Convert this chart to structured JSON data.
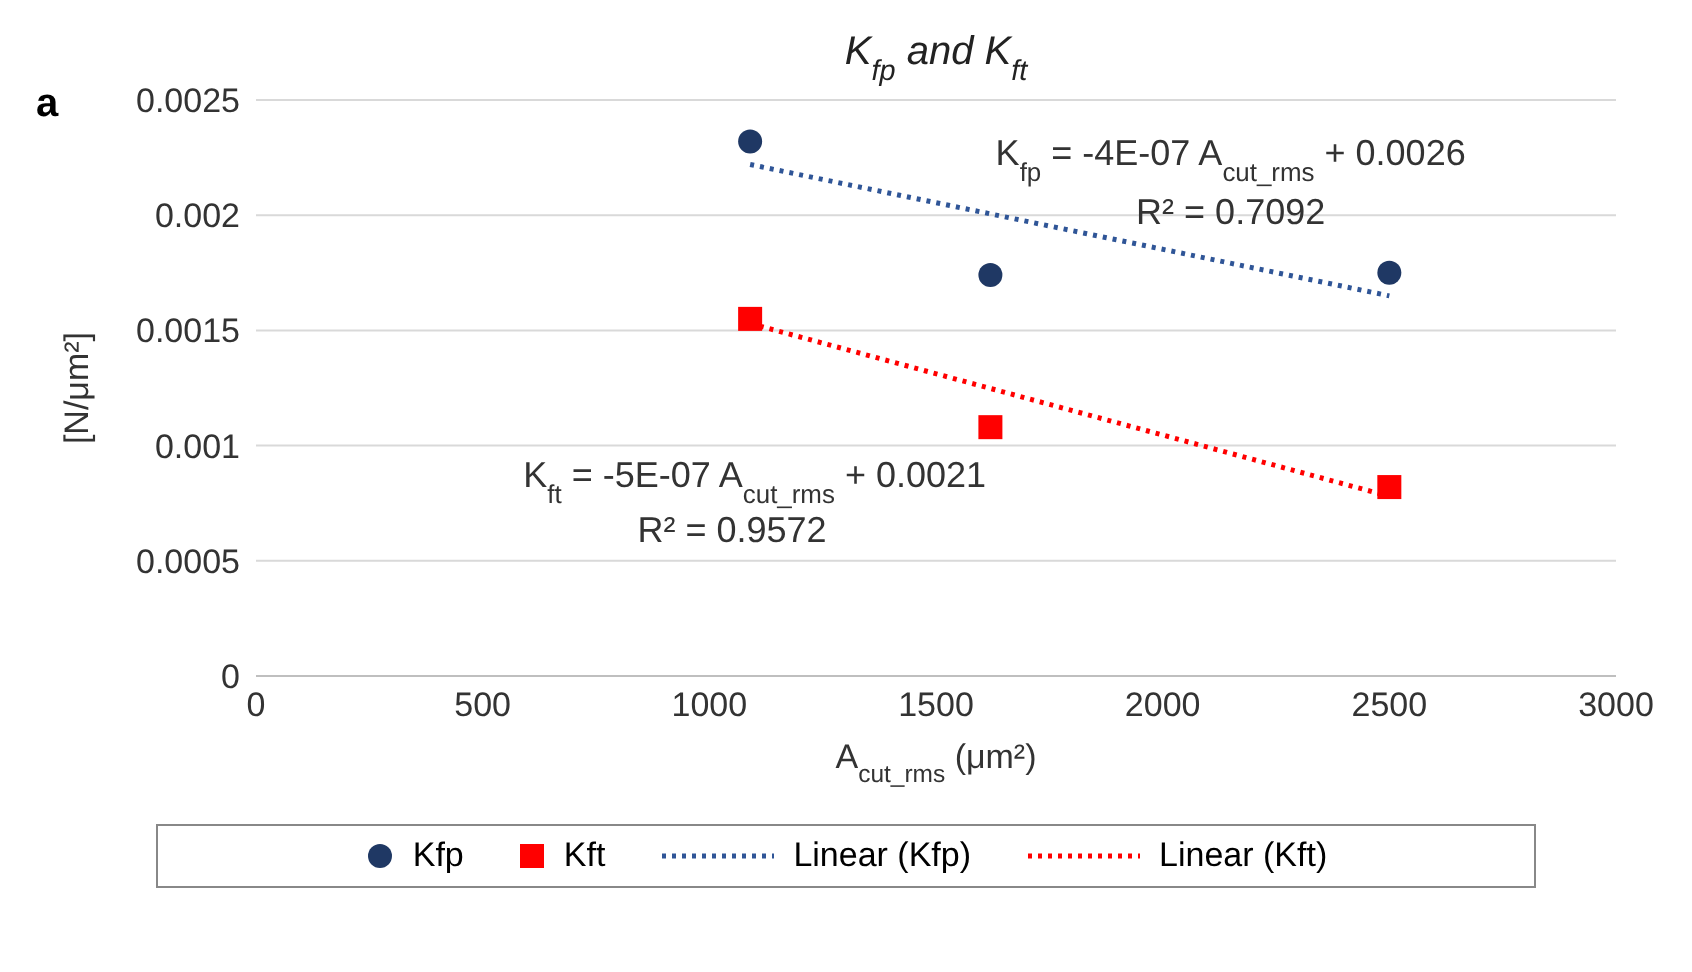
{
  "chart_data": {
    "type": "scatter",
    "title": "K$_{fp}$ and K$_{ft}$",
    "xlabel": "A$_{cut_rms}$ (μm²)",
    "ylabel": "[N/μm²]",
    "xlim": [
      0,
      3000
    ],
    "xticks": [
      0,
      500,
      1000,
      1500,
      2000,
      2500,
      3000
    ],
    "ylim": [
      0,
      0.0025
    ],
    "yticks": [
      0,
      0.0005,
      0.001,
      0.0015,
      0.002,
      0.0025
    ],
    "grid": "y",
    "legend": "bottom",
    "series": [
      {
        "name": "Kfp",
        "marker": "circle",
        "color": "#1f3864",
        "x": [
          1090,
          1620,
          2500
        ],
        "values": [
          0.00232,
          0.00174,
          0.00175
        ]
      },
      {
        "name": "Kft",
        "marker": "square",
        "color": "#ff0000",
        "x": [
          1090,
          1620,
          2500
        ],
        "values": [
          0.00155,
          0.00108,
          0.00082
        ]
      },
      {
        "name": "Linear (Kfp)",
        "type": "line",
        "marker": "none",
        "line_style": "dotted",
        "color": "#2f5597",
        "x": [
          1090,
          2500
        ],
        "values": [
          0.00222,
          0.00165
        ]
      },
      {
        "name": "Linear (Kft)",
        "type": "line",
        "marker": "none",
        "line_style": "dotted",
        "color": "#ff0000",
        "x": [
          1090,
          2500
        ],
        "values": [
          0.00153,
          0.00078
        ]
      }
    ],
    "annotations": [
      "a",
      "K$_{fp}$ = -4E-07 A$_{cut_rms}$ + 0.0026",
      "R² = 0.7092",
      "K$_{ft}$ = -5E-07 A$_{cut_rms}$ + 0.0021",
      "R² = 0.9572"
    ]
  }
}
